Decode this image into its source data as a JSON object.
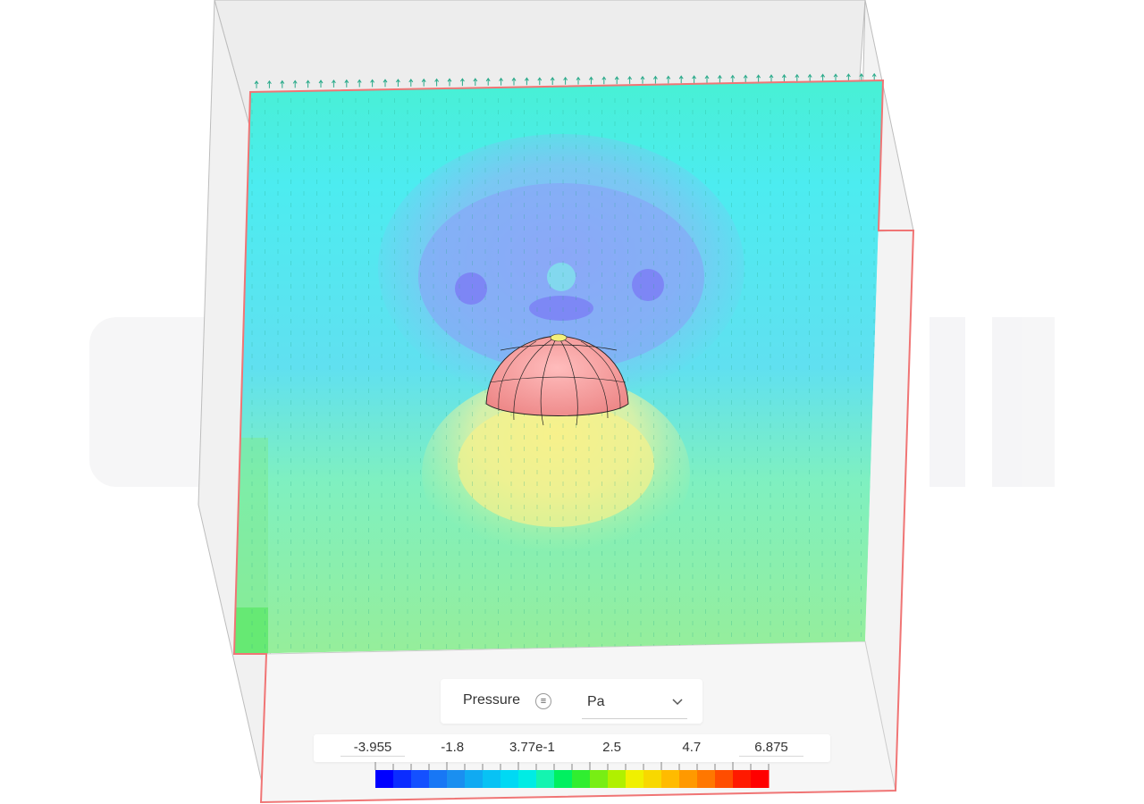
{
  "scene": {
    "background_color": "#ffffff",
    "watermark_color": "#f1f1f3",
    "domain_edge_color": "#f07575",
    "object": "hemisphere",
    "object_color": "#f08a8a",
    "vector_glyph_color": "#2aaa8a"
  },
  "legend": {
    "field_label": "Pressure",
    "info_icon": "list-icon",
    "unit_value": "Pa",
    "unit_dropdown_icon": "chevron-down-icon",
    "tick_labels": [
      "-3.955",
      "-1.8",
      "3.77e-1",
      "2.5",
      "4.7",
      "6.875"
    ],
    "range": [
      -3.955,
      6.875
    ],
    "colormap": [
      "#0000ff",
      "#0b2cff",
      "#1450ff",
      "#1877f5",
      "#1a8ff0",
      "#10aaf2",
      "#08c2f4",
      "#00d9f4",
      "#00ece4",
      "#14f4b0",
      "#00f060",
      "#30ee30",
      "#78ee14",
      "#b0f000",
      "#f0f000",
      "#f8d800",
      "#ffbb00",
      "#ff9900",
      "#ff7700",
      "#ff4d00",
      "#ff1a00",
      "#ff0000"
    ]
  }
}
